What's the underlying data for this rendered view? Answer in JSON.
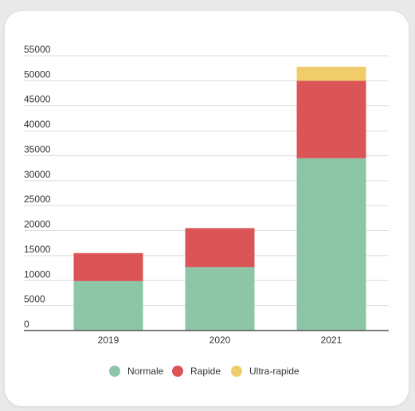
{
  "chart_data": {
    "type": "bar",
    "stacked": true,
    "categories": [
      "2019",
      "2020",
      "2021"
    ],
    "series": [
      {
        "name": "Normale",
        "color": "#8dc5a7",
        "values": [
          9900,
          12700,
          34500
        ]
      },
      {
        "name": "Rapide",
        "color": "#db5456",
        "values": [
          5600,
          7800,
          15500
        ]
      },
      {
        "name": "Ultra-rapide",
        "color": "#f0cd6a",
        "values": [
          0,
          0,
          2800
        ]
      }
    ],
    "ylim": [
      0,
      55000
    ],
    "yticks": [
      "0",
      "5000",
      "10000",
      "15000",
      "20000",
      "25000",
      "30000",
      "35000",
      "40000",
      "45000",
      "50000",
      "55000"
    ],
    "grid": true,
    "legend": "bottom",
    "title": "",
    "xlabel": "",
    "ylabel": ""
  }
}
